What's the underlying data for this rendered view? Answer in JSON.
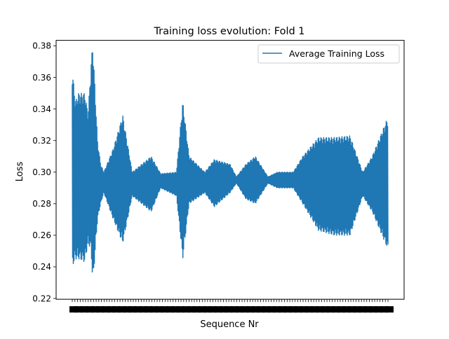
{
  "chart_data": {
    "type": "line",
    "title": "Training loss evolution: Fold 1",
    "xlabel": "Sequence Nr",
    "ylabel": "Loss",
    "ylim": [
      0.2195,
      0.3835
    ],
    "yticks": [
      0.22,
      0.24,
      0.26,
      0.28,
      0.3,
      0.32,
      0.34,
      0.36,
      0.38
    ],
    "ytick_labels": [
      "0.22",
      "0.24",
      "0.26",
      "0.28",
      "0.30",
      "0.32",
      "0.34",
      "0.36",
      "0.38"
    ],
    "xtick_labels_note": "Dense overlapping integer tick labels along the x-axis (unreadable)",
    "grid": false,
    "legend": {
      "position": "top-right",
      "entries": [
        "Average Training Loss"
      ]
    },
    "series": [
      {
        "name": "Average Training Loss",
        "color": "#1f77b4",
        "description": "Rapidly oscillating loss around ~0.29 with varying amplitude envelope",
        "envelope_upper": [
          [
            0,
            0.365
          ],
          [
            0.01,
            0.345
          ],
          [
            0.02,
            0.35
          ],
          [
            0.04,
            0.35
          ],
          [
            0.05,
            0.337
          ],
          [
            0.06,
            0.37
          ],
          [
            0.065,
            0.382
          ],
          [
            0.08,
            0.32
          ],
          [
            0.09,
            0.305
          ],
          [
            0.1,
            0.3
          ],
          [
            0.13,
            0.315
          ],
          [
            0.16,
            0.336
          ],
          [
            0.19,
            0.3
          ],
          [
            0.25,
            0.31
          ],
          [
            0.28,
            0.299
          ],
          [
            0.33,
            0.3
          ],
          [
            0.35,
            0.345
          ],
          [
            0.37,
            0.31
          ],
          [
            0.42,
            0.3
          ],
          [
            0.45,
            0.308
          ],
          [
            0.5,
            0.305
          ],
          [
            0.52,
            0.297
          ],
          [
            0.55,
            0.305
          ],
          [
            0.58,
            0.31
          ],
          [
            0.62,
            0.297
          ],
          [
            0.65,
            0.3
          ],
          [
            0.7,
            0.3
          ],
          [
            0.73,
            0.31
          ],
          [
            0.78,
            0.322
          ],
          [
            0.83,
            0.322
          ],
          [
            0.88,
            0.323
          ],
          [
            0.92,
            0.3
          ],
          [
            0.95,
            0.31
          ],
          [
            1,
            0.335
          ]
        ],
        "envelope_lower": [
          [
            0,
            0.24
          ],
          [
            0.01,
            0.245
          ],
          [
            0.02,
            0.245
          ],
          [
            0.04,
            0.243
          ],
          [
            0.05,
            0.255
          ],
          [
            0.06,
            0.25
          ],
          [
            0.065,
            0.228
          ],
          [
            0.08,
            0.27
          ],
          [
            0.09,
            0.28
          ],
          [
            0.1,
            0.287
          ],
          [
            0.13,
            0.27
          ],
          [
            0.16,
            0.255
          ],
          [
            0.19,
            0.285
          ],
          [
            0.25,
            0.275
          ],
          [
            0.28,
            0.29
          ],
          [
            0.33,
            0.285
          ],
          [
            0.35,
            0.245
          ],
          [
            0.37,
            0.28
          ],
          [
            0.42,
            0.287
          ],
          [
            0.45,
            0.278
          ],
          [
            0.5,
            0.287
          ],
          [
            0.52,
            0.293
          ],
          [
            0.55,
            0.283
          ],
          [
            0.58,
            0.28
          ],
          [
            0.62,
            0.293
          ],
          [
            0.65,
            0.29
          ],
          [
            0.7,
            0.29
          ],
          [
            0.73,
            0.28
          ],
          [
            0.78,
            0.263
          ],
          [
            0.83,
            0.26
          ],
          [
            0.88,
            0.26
          ],
          [
            0.92,
            0.285
          ],
          [
            0.95,
            0.275
          ],
          [
            1,
            0.251
          ]
        ]
      }
    ]
  }
}
